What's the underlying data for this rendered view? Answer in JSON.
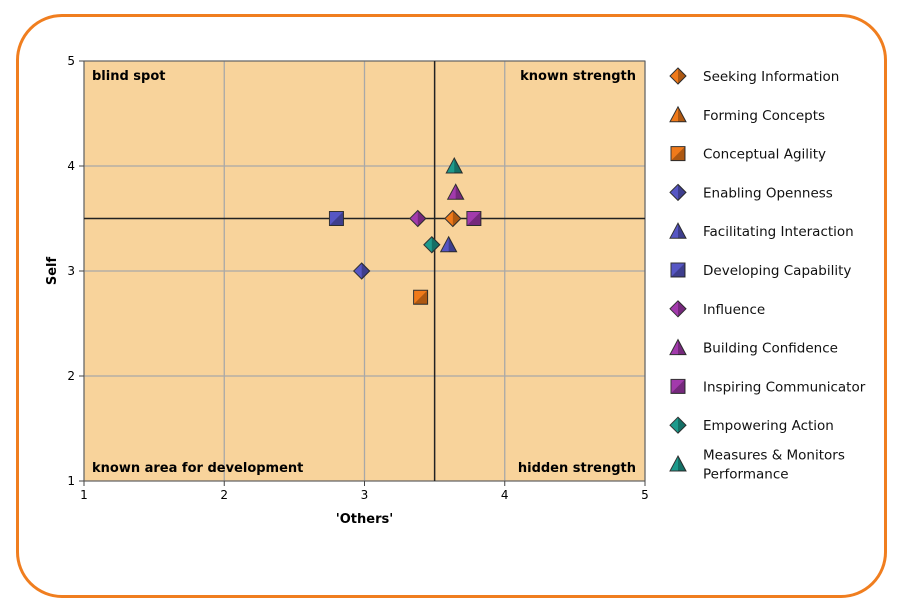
{
  "chart_data": {
    "type": "scatter",
    "xlabel": "'Others'",
    "ylabel": "Self",
    "xlim": [
      1,
      5
    ],
    "ylim": [
      1,
      5
    ],
    "x_ticks": [
      1,
      2,
      3,
      4,
      5
    ],
    "y_ticks": [
      1,
      2,
      3,
      4,
      5
    ],
    "grid": true,
    "reference_lines": {
      "x": 3.5,
      "y": 3.5
    },
    "plot_background": "#f8d39b",
    "quadrant_labels": {
      "top_left": "blind spot",
      "top_right": "known strength",
      "bottom_left": "known area for development",
      "bottom_right": "hidden strength"
    },
    "legend_position": "right",
    "series": [
      {
        "name": "Seeking Information",
        "marker": "diamond",
        "color": "#f07a1a",
        "x": 3.63,
        "y": 3.5
      },
      {
        "name": "Forming Concepts",
        "marker": "triangle",
        "color": "#f07a1a",
        "x": null,
        "y": null
      },
      {
        "name": "Conceptual Agility",
        "marker": "square",
        "color": "#f07a1a",
        "x": 3.4,
        "y": 2.75
      },
      {
        "name": "Enabling Openness",
        "marker": "diamond",
        "color": "#5656c4",
        "x": 2.98,
        "y": 3.0
      },
      {
        "name": "Facilitating Interaction",
        "marker": "triangle",
        "color": "#5656c4",
        "x": 3.6,
        "y": 3.25
      },
      {
        "name": "Developing Capability",
        "marker": "square",
        "color": "#5656c4",
        "x": 2.8,
        "y": 3.5
      },
      {
        "name": "Influence",
        "marker": "diamond",
        "color": "#a23aac",
        "x": 3.38,
        "y": 3.5
      },
      {
        "name": "Building Confidence",
        "marker": "triangle",
        "color": "#a23aac",
        "x": 3.65,
        "y": 3.75
      },
      {
        "name": "Inspiring Communicator",
        "marker": "square",
        "color": "#a23aac",
        "x": 3.78,
        "y": 3.5
      },
      {
        "name": "Empowering Action",
        "marker": "diamond",
        "color": "#1d9a8c",
        "x": 3.48,
        "y": 3.25
      },
      {
        "name": "Measures & Monitors Performance",
        "marker": "triangle",
        "color": "#1d9a8c",
        "x": 3.64,
        "y": 4.0,
        "label_lines": [
          "Measures & Monitors",
          "Performance"
        ]
      }
    ]
  }
}
